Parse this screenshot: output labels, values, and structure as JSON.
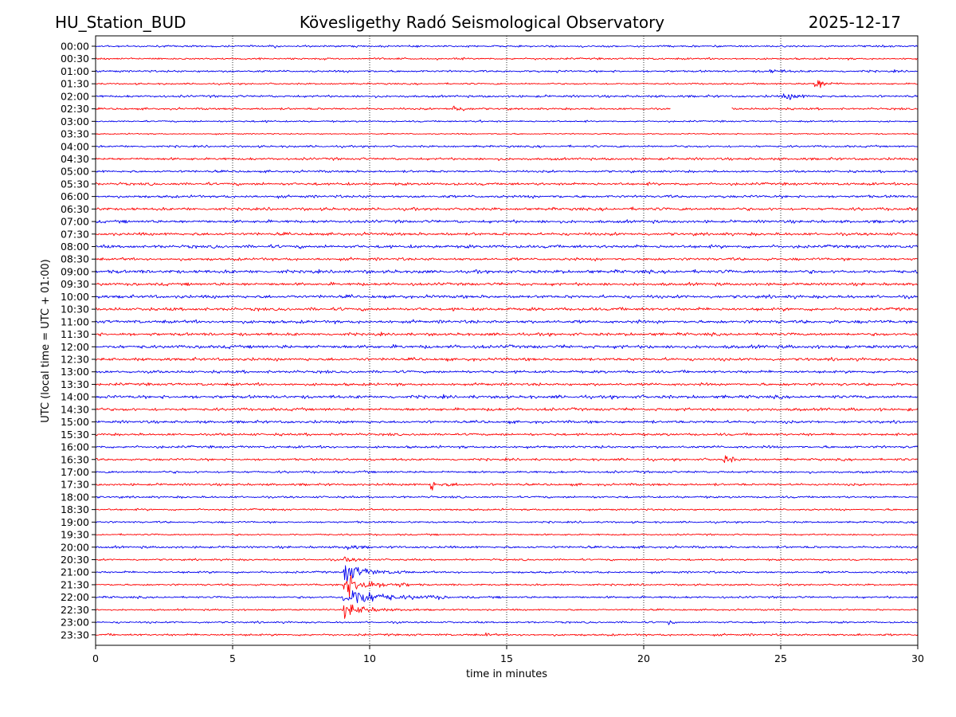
{
  "chart_data": {
    "type": "line",
    "title_left": "HU_Station_BUD",
    "title_center": "Kövesligethy Radó Seismological Observatory",
    "title_right": "2025-12-17",
    "xlabel": "time in minutes",
    "ylabel": "UTC (local time = UTC + 01:00)",
    "xlim": [
      0,
      30
    ],
    "x_ticks": [
      0,
      5,
      10,
      15,
      20,
      25,
      30
    ],
    "grid": "vertical-dotted",
    "row_labels": [
      "00:00",
      "00:30",
      "01:00",
      "01:30",
      "02:00",
      "02:30",
      "03:00",
      "03:30",
      "04:00",
      "04:30",
      "05:00",
      "05:30",
      "06:00",
      "06:30",
      "07:00",
      "07:30",
      "08:00",
      "08:30",
      "09:00",
      "09:30",
      "10:00",
      "10:30",
      "11:00",
      "11:30",
      "12:00",
      "12:30",
      "13:00",
      "13:30",
      "14:00",
      "14:30",
      "15:00",
      "15:30",
      "16:00",
      "16:30",
      "17:00",
      "17:30",
      "18:00",
      "18:30",
      "19:00",
      "19:30",
      "20:00",
      "20:30",
      "21:00",
      "21:30",
      "22:00",
      "22:30",
      "23:00",
      "23:30"
    ],
    "trace_colors": [
      "#0000ee",
      "#ff0000"
    ],
    "baseline_amplitude": [
      0.9,
      0.9,
      1.0,
      0.8,
      1.1,
      1.0,
      0.8,
      0.6,
      1.0,
      1.2,
      1.1,
      1.3,
      1.3,
      1.4,
      1.4,
      1.4,
      1.5,
      1.3,
      1.6,
      1.4,
      1.5,
      1.5,
      1.5,
      1.4,
      1.6,
      1.4,
      1.3,
      1.3,
      1.5,
      1.4,
      1.3,
      1.2,
      1.2,
      1.1,
      1.1,
      1.1,
      1.0,
      0.9,
      0.9,
      0.8,
      1.1,
      0.9,
      1.0,
      0.9,
      1.0,
      0.8,
      0.9,
      1.0
    ],
    "events": [
      {
        "row": 0,
        "start": 6.5,
        "end": 7.0,
        "amp": 2.5
      },
      {
        "row": 1,
        "start": 5.9,
        "end": 6.5,
        "amp": 2.5
      },
      {
        "row": 1,
        "start": 16.0,
        "end": 16.8,
        "amp": 2.0
      },
      {
        "row": 2,
        "start": 16.8,
        "end": 17.5,
        "amp": 2.5
      },
      {
        "row": 2,
        "start": 24.5,
        "end": 28.5,
        "amp": 3.0
      },
      {
        "row": 3,
        "start": 26.2,
        "end": 27.3,
        "amp": 11
      },
      {
        "row": 4,
        "start": 25.0,
        "end": 28.2,
        "amp": 5
      },
      {
        "row": 5,
        "start": 13.0,
        "end": 14.6,
        "amp": 6
      },
      {
        "row": 6,
        "start": 14.0,
        "end": 14.8,
        "amp": 2.5
      },
      {
        "row": 6,
        "start": 6.0,
        "end": 7.5,
        "amp": 2.0
      },
      {
        "row": 24,
        "start": 5.8,
        "end": 6.8,
        "amp": 3.5
      },
      {
        "row": 33,
        "start": 22.9,
        "end": 24.2,
        "amp": 7
      },
      {
        "row": 35,
        "start": 12.2,
        "end": 12.7,
        "amp": 12
      },
      {
        "row": 35,
        "start": 12.7,
        "end": 16.5,
        "amp": 3
      },
      {
        "row": 40,
        "start": 9.0,
        "end": 12.0,
        "amp": 4
      },
      {
        "row": 41,
        "start": 9.0,
        "end": 11.5,
        "amp": 4
      },
      {
        "row": 42,
        "start": 9.0,
        "end": 11.5,
        "amp": 14
      },
      {
        "row": 42,
        "start": 18.7,
        "end": 19.0,
        "amp": 3
      },
      {
        "row": 43,
        "start": 9.0,
        "end": 11.5,
        "amp": 18
      },
      {
        "row": 44,
        "start": 9.0,
        "end": 12.8,
        "amp": 16
      },
      {
        "row": 45,
        "start": 9.0,
        "end": 11.8,
        "amp": 10
      },
      {
        "row": 46,
        "start": 20.9,
        "end": 21.3,
        "amp": 5
      },
      {
        "row": 47,
        "start": 14.2,
        "end": 15.2,
        "amp": 3
      },
      {
        "row": 47,
        "start": 27.7,
        "end": 29.0,
        "amp": 3
      }
    ],
    "gaps": [
      {
        "row": 5,
        "start": 21.0,
        "end": 23.2
      }
    ]
  }
}
